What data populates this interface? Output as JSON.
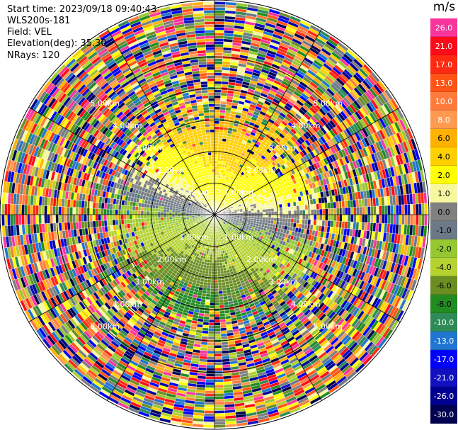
{
  "header": {
    "start_time": "Start time: 2023/09/18 09:40:43",
    "instrument": "WLS200s-181",
    "field": "Field: VEL",
    "elevation": "Elevation(deg): 35.30",
    "nrays": "NRays: 120"
  },
  "range_labels": {
    "ring1": "1.00km",
    "ring2": "2.00km",
    "ring3": "3.00km",
    "ring4": "4.00km",
    "ring5": "5.00km"
  },
  "colorbar": {
    "unit": "m/s",
    "ticks": [
      "26.0",
      "21.0",
      "17.0",
      "13.0",
      "10.0",
      "8.0",
      "6.0",
      "4.0",
      "2.0",
      "1.0",
      "0.0",
      "-1.0",
      "-2.0",
      "-4.0",
      "-6.0",
      "-8.0",
      "-10.0",
      "-13.0",
      "-17.0",
      "-21.0",
      "-26.0",
      "-30.0"
    ],
    "colors": [
      "#f9359c",
      "#ff0a19",
      "#ff2a12",
      "#ff5416",
      "#ff7b3c",
      "#ff9a50",
      "#ffb100",
      "#ffd000",
      "#ffff00",
      "#f7f7a0",
      "#808080",
      "#6b7a86",
      "#96c832",
      "#b4d230",
      "#6b8e23",
      "#228b22",
      "#2e8b57",
      "#1f75d0",
      "#0000ff",
      "#1010c0",
      "#000090",
      "#000050"
    ]
  },
  "chart_data": {
    "type": "heatmap",
    "subtype": "radar-ppi",
    "field": "VEL",
    "units": "m/s",
    "elevation_deg": 35.3,
    "n_rays": 120,
    "range_rings_km": [
      1,
      2,
      3,
      4,
      5
    ],
    "max_range_km": 6.8,
    "color_scale_ticks": [
      26.0,
      21.0,
      17.0,
      13.0,
      10.0,
      8.0,
      6.0,
      4.0,
      2.0,
      1.0,
      0.0,
      -1.0,
      -2.0,
      -4.0,
      -6.0,
      -8.0,
      -10.0,
      -13.0,
      -17.0,
      -21.0,
      -26.0,
      -30.0
    ],
    "approx_velocity_by_sector": {
      "north": 4.0,
      "east": 1.0,
      "south": -5.0,
      "west": -1.0
    },
    "valid_data_max_range_km": 3.4
  }
}
